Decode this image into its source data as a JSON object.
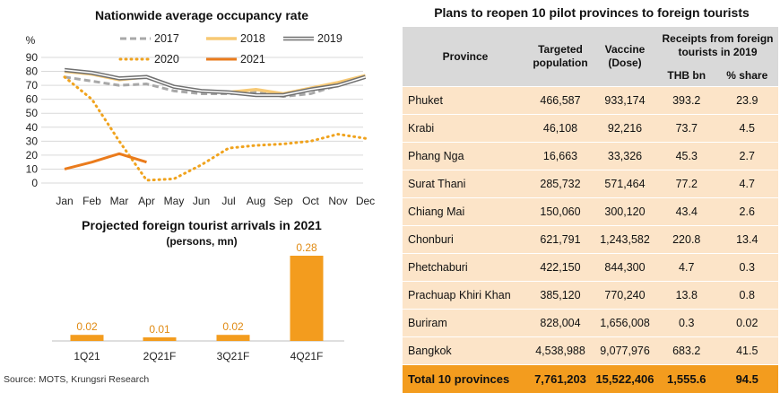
{
  "line_chart_title": "Nationwide average occupancy rate",
  "bar_chart_title": "Projected foreign tourist arrivals in 2021",
  "bar_chart_subtitle": "(persons, mn)",
  "source": "Source: MOTS, Krungsri Research",
  "colors": {
    "s2017": "#a8a8a8",
    "s2018": "#f7c974",
    "s2019": "#707070",
    "s2020": "#f0a31e",
    "s2021": "#ea7b1c",
    "bar": "#f39c1e",
    "table_body": "#fce4c8",
    "table_header": "#d9d9d9",
    "table_total": "#f39c1e"
  },
  "chart_data": [
    {
      "type": "line",
      "title": "Nationwide average occupancy rate",
      "ylabel": "%",
      "ylim": [
        0,
        90
      ],
      "yticks": [
        0,
        10,
        20,
        30,
        40,
        50,
        60,
        70,
        80,
        90
      ],
      "categories": [
        "Jan",
        "Feb",
        "Mar",
        "Apr",
        "May",
        "Jun",
        "Jul",
        "Aug",
        "Sep",
        "Oct",
        "Nov",
        "Dec"
      ],
      "grid": true,
      "legend": "top",
      "series": [
        {
          "name": "2017",
          "style": "dashed",
          "values": [
            76,
            73,
            70,
            71,
            66,
            64,
            64,
            65,
            62,
            64,
            70,
            77
          ]
        },
        {
          "name": "2018",
          "style": "solid",
          "values": [
            80,
            78,
            74,
            76,
            69,
            66,
            65,
            67,
            64,
            68,
            72,
            77
          ]
        },
        {
          "name": "2019",
          "style": "double",
          "values": [
            81,
            79,
            75,
            76,
            69,
            66,
            65,
            63,
            63,
            67,
            70,
            76
          ]
        },
        {
          "name": "2020",
          "style": "dotted",
          "values": [
            76,
            60,
            30,
            2,
            3,
            13,
            25,
            27,
            28,
            30,
            35,
            32
          ]
        },
        {
          "name": "2021",
          "style": "solid",
          "values": [
            10,
            15,
            21,
            15,
            null,
            null,
            null,
            null,
            null,
            null,
            null,
            null
          ]
        }
      ]
    },
    {
      "type": "bar",
      "title": "Projected foreign tourist arrivals in 2021",
      "subtitle": "(persons, mn)",
      "categories": [
        "1Q21",
        "2Q21F",
        "3Q21F",
        "4Q21F"
      ],
      "values": [
        0.02,
        0.01,
        0.02,
        0.28
      ],
      "labels": [
        "0.02",
        "0.01",
        "0.02",
        "0.28"
      ]
    },
    {
      "type": "table",
      "title": "Plans to reopen 10 pilot provinces to foreign tourists",
      "headers": {
        "province": "Province",
        "population": [
          "Targeted",
          "population"
        ],
        "vaccine": [
          "Vaccine",
          "(Dose)"
        ],
        "receipts": [
          "Receipts from foreign",
          "tourists in 2019"
        ],
        "thb": "THB bn",
        "share": "% share"
      },
      "rows": [
        [
          "Phuket",
          "466,587",
          "933,174",
          "393.2",
          "23.9"
        ],
        [
          "Krabi",
          "46,108",
          "92,216",
          "73.7",
          "4.5"
        ],
        [
          "Phang Nga",
          "16,663",
          "33,326",
          "45.3",
          "2.7"
        ],
        [
          "Surat Thani",
          "285,732",
          "571,464",
          "77.2",
          "4.7"
        ],
        [
          "Chiang Mai",
          "150,060",
          "300,120",
          "43.4",
          "2.6"
        ],
        [
          "Chonburi",
          "621,791",
          "1,243,582",
          "220.8",
          "13.4"
        ],
        [
          "Phetchaburi",
          "422,150",
          "844,300",
          "4.7",
          "0.3"
        ],
        [
          "Prachuap Khiri Khan",
          "385,120",
          "770,240",
          "13.8",
          "0.8"
        ],
        [
          "Buriram",
          "828,004",
          "1,656,008",
          "0.3",
          "0.02"
        ],
        [
          "Bangkok",
          "4,538,988",
          "9,077,976",
          "683.2",
          "41.5"
        ]
      ],
      "total": [
        "Total 10 provinces",
        "7,761,203",
        "15,522,406",
        "1,555.6",
        "94.5"
      ]
    }
  ]
}
